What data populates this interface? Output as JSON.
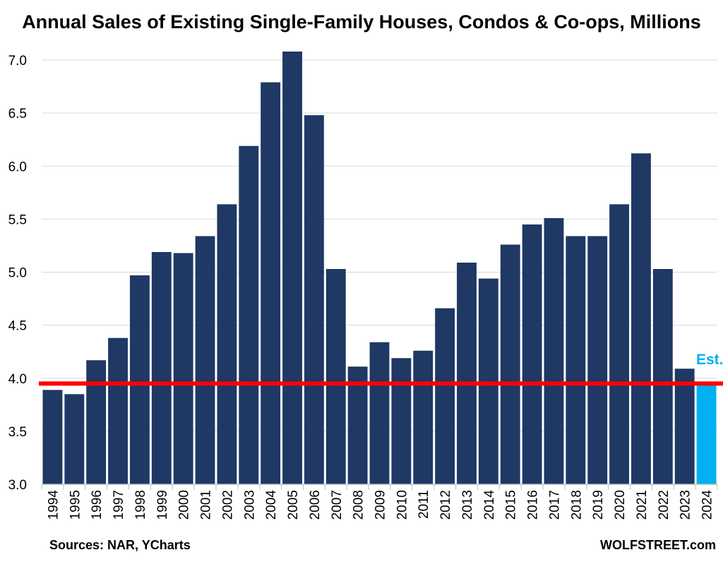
{
  "chart_data": {
    "type": "bar",
    "title": "Annual Sales of Existing Single-Family Houses, Condos & Co-ops, Millions",
    "categories": [
      "1994",
      "1995",
      "1996",
      "1997",
      "1998",
      "1999",
      "2000",
      "2001",
      "2002",
      "2003",
      "2004",
      "2005",
      "2006",
      "2007",
      "2008",
      "2009",
      "2010",
      "2011",
      "2012",
      "2013",
      "2014",
      "2015",
      "2016",
      "2017",
      "2018",
      "2019",
      "2020",
      "2021",
      "2022",
      "2023",
      "2024"
    ],
    "values": [
      3.89,
      3.85,
      4.17,
      4.38,
      4.97,
      5.19,
      5.18,
      5.34,
      5.64,
      6.19,
      6.79,
      7.08,
      6.48,
      5.03,
      4.11,
      4.34,
      4.19,
      4.26,
      4.66,
      5.09,
      4.94,
      5.26,
      5.45,
      5.51,
      5.34,
      5.34,
      5.64,
      6.12,
      5.03,
      4.09,
      3.95
    ],
    "estimate_index": 30,
    "estimate_label": "Est.",
    "reference_line": 3.95,
    "ylim": [
      3.0,
      7.08
    ],
    "yticks": [
      "3.0",
      "3.5",
      "4.0",
      "4.5",
      "5.0",
      "5.5",
      "6.0",
      "6.5",
      "7.0"
    ],
    "grid": true,
    "colors": {
      "bar": "#1f3864",
      "estimate_bar": "#00b0f0",
      "estimate_label": "#00b0f0",
      "reference_line": "#ff0000",
      "grid": "#d9d9d9"
    }
  },
  "footer": {
    "sources": "Sources: NAR, YCharts",
    "brand": "WOLFSTREET.com"
  }
}
